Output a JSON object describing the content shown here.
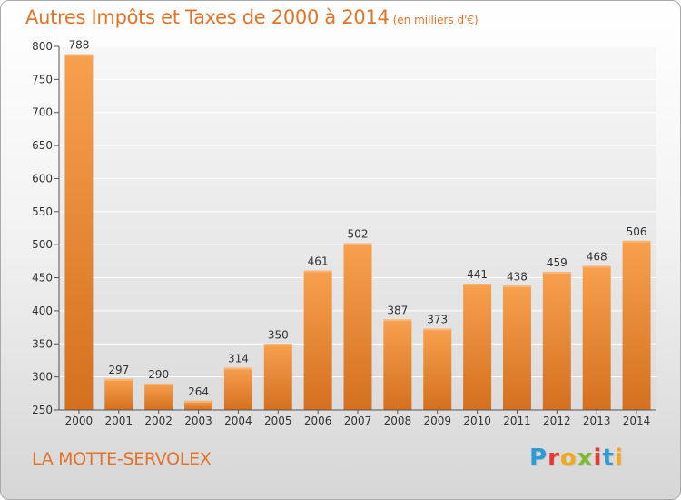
{
  "chart_data": {
    "type": "bar",
    "title": "Autres Impôts et Taxes de 2000 à 2014",
    "subtitle": "(en milliers d'€)",
    "categories": [
      "2000",
      "2001",
      "2002",
      "2003",
      "2004",
      "2005",
      "2006",
      "2007",
      "2008",
      "2009",
      "2010",
      "2011",
      "2012",
      "2013",
      "2014"
    ],
    "values": [
      788,
      297,
      290,
      264,
      314,
      350,
      461,
      502,
      387,
      373,
      441,
      438,
      459,
      468,
      506
    ],
    "ylim": [
      250,
      800
    ],
    "yticks": [
      250,
      300,
      350,
      400,
      450,
      500,
      550,
      600,
      650,
      700,
      750,
      800
    ],
    "grid": true,
    "bar_color": "#f0913d"
  },
  "footer": {
    "commune": "LA MOTTE-SERVOLEX",
    "logo_letters": [
      "P",
      "r",
      "o",
      "x",
      "i",
      "t",
      "i"
    ],
    "logo_colors": [
      "#2f9bd6",
      "#e8372c",
      "#f2a81d",
      "#7dba2f",
      "#e8372c",
      "#2f9bd6",
      "#f2a81d"
    ]
  }
}
